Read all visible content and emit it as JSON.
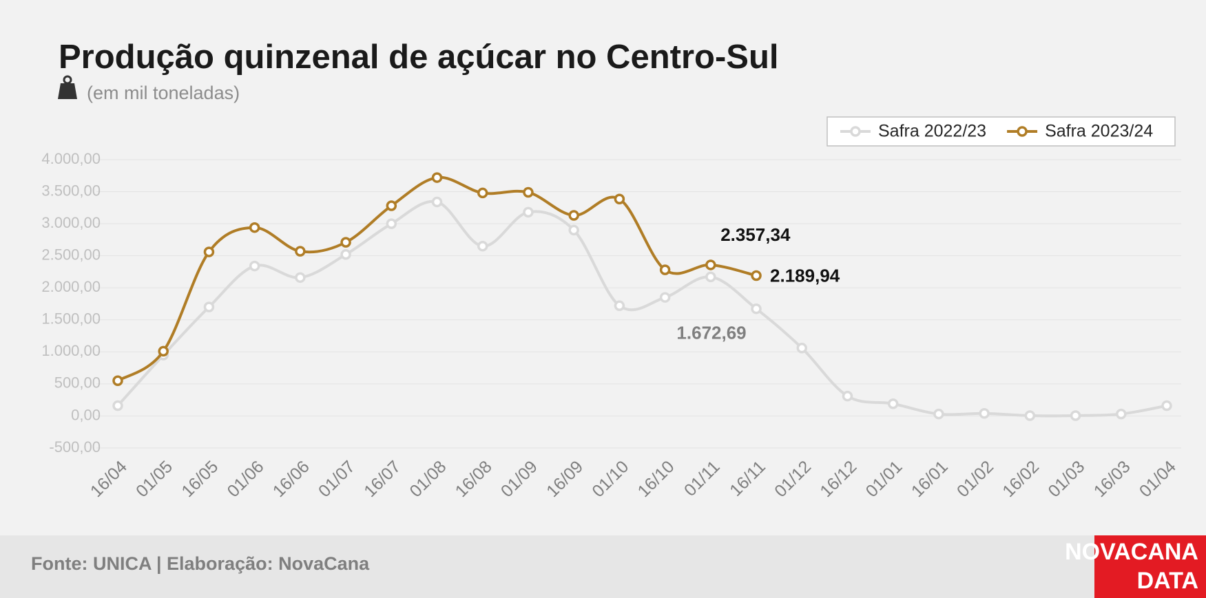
{
  "chart_data": {
    "type": "line",
    "title": "Produção quinzenal de açúcar no Centro-Sul",
    "subtitle": "(em mil toneladas)",
    "categories": [
      "16/04",
      "01/05",
      "16/05",
      "01/06",
      "16/06",
      "01/07",
      "16/07",
      "01/08",
      "16/08",
      "01/09",
      "16/09",
      "01/10",
      "16/10",
      "01/11",
      "16/11",
      "01/12",
      "16/12",
      "01/01",
      "16/01",
      "01/02",
      "16/02",
      "01/03",
      "16/03",
      "01/04"
    ],
    "series": [
      {
        "name": "Safra 2022/23",
        "color": "#d9d9d9",
        "values": [
          160,
          950,
          1700,
          2340,
          2160,
          2520,
          3000,
          3340,
          2650,
          3180,
          2900,
          1720,
          1850,
          2170,
          1672.69,
          1060,
          310,
          190,
          30,
          40,
          5,
          5,
          30,
          160
        ],
        "value_labels": [
          null,
          null,
          null,
          null,
          null,
          null,
          null,
          null,
          null,
          null,
          null,
          null,
          null,
          null,
          "1.672,69",
          null,
          null,
          null,
          null,
          null,
          null,
          null,
          null,
          null
        ]
      },
      {
        "name": "Safra 2023/24",
        "color": "#b07d26",
        "values": [
          550,
          1010,
          2560,
          2940,
          2570,
          2710,
          3280,
          3720,
          3480,
          3490,
          3130,
          3385,
          2280,
          2357.34,
          2189.94,
          null,
          null,
          null,
          null,
          null,
          null,
          null,
          null,
          null
        ],
        "value_labels": [
          null,
          null,
          null,
          null,
          null,
          null,
          null,
          null,
          null,
          null,
          null,
          null,
          null,
          "2.357,34",
          "2.189,94",
          null,
          null,
          null,
          null,
          null,
          null,
          null,
          null,
          null
        ]
      }
    ],
    "ylim": [
      -500,
      4000
    ],
    "yticks": [
      {
        "value": -500,
        "label": "-500,00"
      },
      {
        "value": 0,
        "label": "0,00"
      },
      {
        "value": 500,
        "label": "500,00"
      },
      {
        "value": 1000,
        "label": "1.000,00"
      },
      {
        "value": 1500,
        "label": "1.500,00"
      },
      {
        "value": 2000,
        "label": "2.000,00"
      },
      {
        "value": 2500,
        "label": "2.500,00"
      },
      {
        "value": 3000,
        "label": "3.000,00"
      },
      {
        "value": 3500,
        "label": "3.500,00"
      },
      {
        "value": 4000,
        "label": "4.000,00"
      }
    ],
    "grid": true,
    "legend": "top-right"
  },
  "footer": {
    "source": "Fonte: UNICA | Elaboração: NovaCana",
    "logo": [
      "NOVACANA",
      "DATA"
    ]
  }
}
